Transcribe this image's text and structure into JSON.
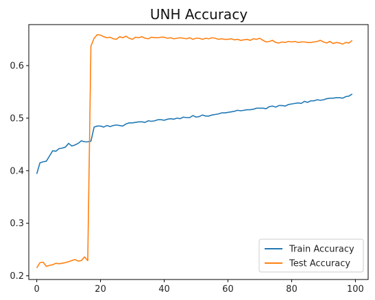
{
  "chart_data": {
    "type": "line",
    "title": "UNH Accuracy",
    "xlabel": "",
    "ylabel": "",
    "xlim": [
      -2.5,
      104
    ],
    "ylim": [
      0.193,
      0.678
    ],
    "xticks": [
      0,
      20,
      40,
      60,
      80,
      100
    ],
    "yticks": [
      0.2,
      0.3,
      0.4,
      0.5,
      0.6
    ],
    "xtick_labels": [
      "0",
      "20",
      "40",
      "60",
      "80",
      "100"
    ],
    "ytick_labels": [
      "0.2",
      "0.3",
      "0.4",
      "0.5",
      "0.6"
    ],
    "grid": false,
    "legend_position": "lower-right",
    "series": [
      {
        "name": "Train Accuracy",
        "color": "#1f77b4",
        "x": [
          0,
          1,
          2,
          3,
          4,
          5,
          6,
          7,
          8,
          9,
          10,
          11,
          12,
          13,
          14,
          15,
          16,
          17,
          18,
          19,
          20,
          21,
          22,
          23,
          24,
          25,
          26,
          27,
          28,
          29,
          30,
          31,
          32,
          33,
          34,
          35,
          36,
          37,
          38,
          39,
          40,
          41,
          42,
          43,
          44,
          45,
          46,
          47,
          48,
          49,
          50,
          51,
          52,
          53,
          54,
          55,
          56,
          57,
          58,
          59,
          60,
          61,
          62,
          63,
          64,
          65,
          66,
          67,
          68,
          69,
          70,
          71,
          72,
          73,
          74,
          75,
          76,
          77,
          78,
          79,
          80,
          81,
          82,
          83,
          84,
          85,
          86,
          87,
          88,
          89,
          90,
          91,
          92,
          93,
          94,
          95,
          96,
          97,
          98,
          99
        ],
        "values": [
          0.394,
          0.415,
          0.417,
          0.418,
          0.428,
          0.438,
          0.437,
          0.442,
          0.443,
          0.445,
          0.452,
          0.447,
          0.449,
          0.452,
          0.457,
          0.455,
          0.455,
          0.456,
          0.483,
          0.485,
          0.485,
          0.483,
          0.486,
          0.484,
          0.486,
          0.487,
          0.486,
          0.485,
          0.489,
          0.491,
          0.491,
          0.492,
          0.493,
          0.493,
          0.492,
          0.495,
          0.494,
          0.495,
          0.497,
          0.497,
          0.496,
          0.498,
          0.499,
          0.498,
          0.5,
          0.499,
          0.502,
          0.501,
          0.501,
          0.505,
          0.502,
          0.503,
          0.506,
          0.504,
          0.504,
          0.506,
          0.507,
          0.508,
          0.51,
          0.51,
          0.511,
          0.512,
          0.513,
          0.515,
          0.514,
          0.515,
          0.516,
          0.516,
          0.517,
          0.519,
          0.519,
          0.519,
          0.518,
          0.522,
          0.523,
          0.521,
          0.524,
          0.524,
          0.523,
          0.526,
          0.527,
          0.528,
          0.529,
          0.528,
          0.532,
          0.53,
          0.533,
          0.533,
          0.535,
          0.534,
          0.535,
          0.537,
          0.538,
          0.538,
          0.539,
          0.539,
          0.538,
          0.541,
          0.542,
          0.546
        ]
      },
      {
        "name": "Test Accuracy",
        "color": "#ff7f0e",
        "x": [
          0,
          1,
          2,
          3,
          4,
          5,
          6,
          7,
          8,
          9,
          10,
          11,
          12,
          13,
          14,
          15,
          16,
          17,
          18,
          19,
          20,
          21,
          22,
          23,
          24,
          25,
          26,
          27,
          28,
          29,
          30,
          31,
          32,
          33,
          34,
          35,
          36,
          37,
          38,
          39,
          40,
          41,
          42,
          43,
          44,
          45,
          46,
          47,
          48,
          49,
          50,
          51,
          52,
          53,
          54,
          55,
          56,
          57,
          58,
          59,
          60,
          61,
          62,
          63,
          64,
          65,
          66,
          67,
          68,
          69,
          70,
          71,
          72,
          73,
          74,
          75,
          76,
          77,
          78,
          79,
          80,
          81,
          82,
          83,
          84,
          85,
          86,
          87,
          88,
          89,
          90,
          91,
          92,
          93,
          94,
          95,
          96,
          97,
          98,
          99
        ],
        "values": [
          0.215,
          0.225,
          0.226,
          0.218,
          0.22,
          0.221,
          0.224,
          0.223,
          0.224,
          0.225,
          0.227,
          0.229,
          0.231,
          0.228,
          0.229,
          0.236,
          0.229,
          0.637,
          0.652,
          0.659,
          0.658,
          0.655,
          0.653,
          0.654,
          0.651,
          0.65,
          0.655,
          0.653,
          0.656,
          0.652,
          0.65,
          0.654,
          0.653,
          0.655,
          0.652,
          0.651,
          0.654,
          0.653,
          0.653,
          0.654,
          0.654,
          0.652,
          0.653,
          0.651,
          0.652,
          0.653,
          0.652,
          0.651,
          0.653,
          0.65,
          0.652,
          0.652,
          0.65,
          0.652,
          0.651,
          0.653,
          0.652,
          0.65,
          0.651,
          0.65,
          0.65,
          0.651,
          0.649,
          0.65,
          0.648,
          0.649,
          0.65,
          0.648,
          0.651,
          0.65,
          0.652,
          0.648,
          0.645,
          0.646,
          0.648,
          0.644,
          0.643,
          0.645,
          0.644,
          0.646,
          0.645,
          0.646,
          0.644,
          0.645,
          0.645,
          0.644,
          0.644,
          0.645,
          0.646,
          0.648,
          0.645,
          0.643,
          0.646,
          0.642,
          0.644,
          0.643,
          0.641,
          0.644,
          0.643,
          0.648
        ]
      }
    ]
  }
}
